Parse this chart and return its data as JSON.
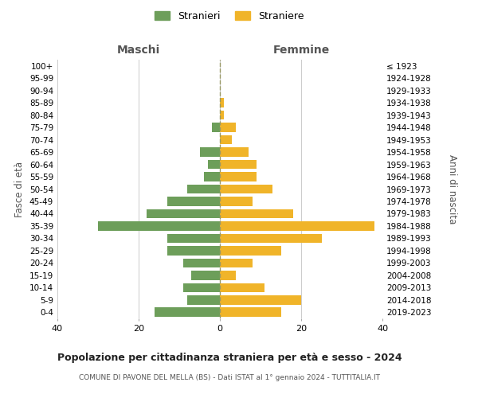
{
  "age_groups": [
    "0-4",
    "5-9",
    "10-14",
    "15-19",
    "20-24",
    "25-29",
    "30-34",
    "35-39",
    "40-44",
    "45-49",
    "50-54",
    "55-59",
    "60-64",
    "65-69",
    "70-74",
    "75-79",
    "80-84",
    "85-89",
    "90-94",
    "95-99",
    "100+"
  ],
  "birth_years": [
    "2019-2023",
    "2014-2018",
    "2009-2013",
    "2004-2008",
    "1999-2003",
    "1994-1998",
    "1989-1993",
    "1984-1988",
    "1979-1983",
    "1974-1978",
    "1969-1973",
    "1964-1968",
    "1959-1963",
    "1954-1958",
    "1949-1953",
    "1944-1948",
    "1939-1943",
    "1934-1938",
    "1929-1933",
    "1924-1928",
    "≤ 1923"
  ],
  "maschi": [
    16,
    8,
    9,
    7,
    9,
    13,
    13,
    30,
    18,
    13,
    8,
    4,
    3,
    5,
    0,
    2,
    0,
    0,
    0,
    0,
    0
  ],
  "femmine": [
    15,
    20,
    11,
    4,
    8,
    15,
    25,
    38,
    18,
    8,
    13,
    9,
    9,
    7,
    3,
    4,
    1,
    1,
    0,
    0,
    0
  ],
  "color_maschi": "#6d9e5a",
  "color_femmine": "#f0b429",
  "title": "Popolazione per cittadinanza straniera per età e sesso - 2024",
  "subtitle": "COMUNE DI PAVONE DEL MELLA (BS) - Dati ISTAT al 1° gennaio 2024 - TUTTITALIA.IT",
  "label_maschi": "Maschi",
  "label_femmine": "Femmine",
  "ylabel_left": "Fasce di età",
  "ylabel_right": "Anni di nascita",
  "legend_maschi": "Stranieri",
  "legend_femmine": "Straniere",
  "xlim": 40,
  "background_color": "#ffffff",
  "grid_color": "#cccccc",
  "bar_height": 0.75
}
